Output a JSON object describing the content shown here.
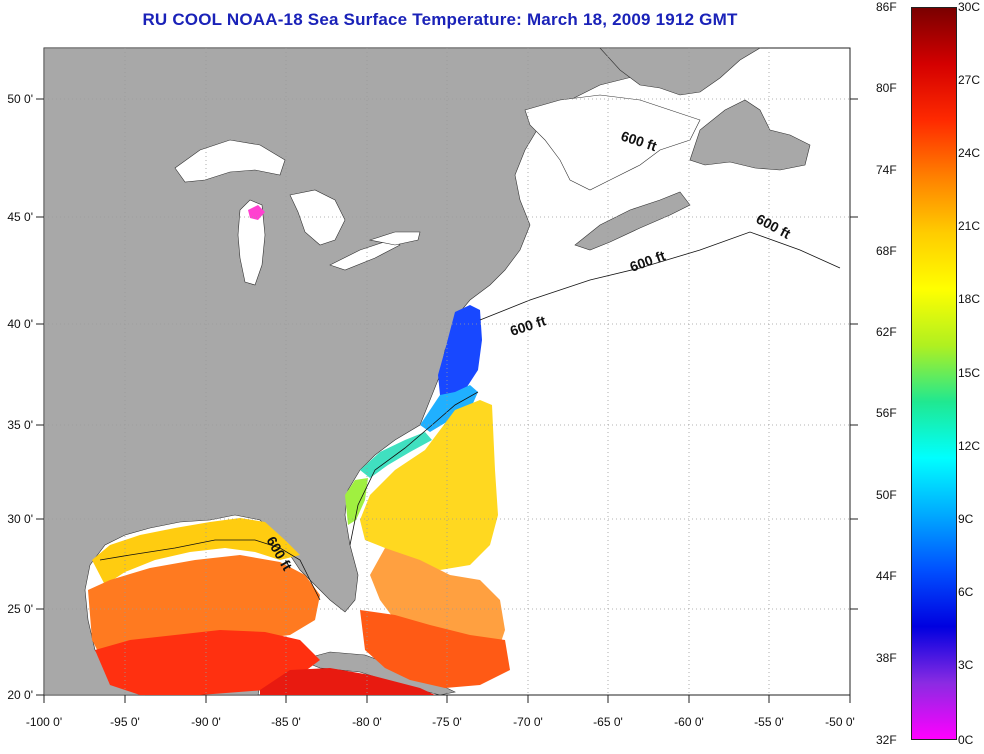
{
  "title": "RU COOL  NOAA-18  Sea Surface Temperature:  March 18, 2009 1912 GMT",
  "map": {
    "lon_ticks": [
      "-100 0'",
      "-95 0'",
      "-90 0'",
      "-85 0'",
      "-80 0'",
      "-75 0'",
      "-70 0'",
      "-65 0'",
      "-60 0'",
      "-55 0'",
      "-50 0'"
    ],
    "lat_ticks": [
      "50 0'",
      "45 0'",
      "40 0'",
      "35 0'",
      "30 0'",
      "25 0'",
      "20 0'"
    ],
    "isobath_labels": [
      "600 ft",
      "600 ft",
      "600 ft",
      "600 ft",
      "600 ft"
    ],
    "colors": {
      "land": "#a8a8a8",
      "no_data": "#ffffff",
      "grid": "#9a9a9a"
    }
  },
  "colorbar": {
    "fahrenheit_labels": [
      "86F",
      "80F",
      "74F",
      "68F",
      "62F",
      "56F",
      "50F",
      "44F",
      "38F",
      "32F"
    ],
    "celsius_labels": [
      "30C",
      "27C",
      "24C",
      "21C",
      "18C",
      "15C",
      "12C",
      "9C",
      "6C",
      "3C",
      "0C"
    ],
    "gradient_colors": [
      "#7a0000",
      "#d40000",
      "#ff2a00",
      "#ff8000",
      "#ffcc00",
      "#ffff00",
      "#b0f020",
      "#20e890",
      "#00ffff",
      "#00aaff",
      "#0050ff",
      "#0000e0",
      "#8a2be2",
      "#ff00ff"
    ]
  }
}
